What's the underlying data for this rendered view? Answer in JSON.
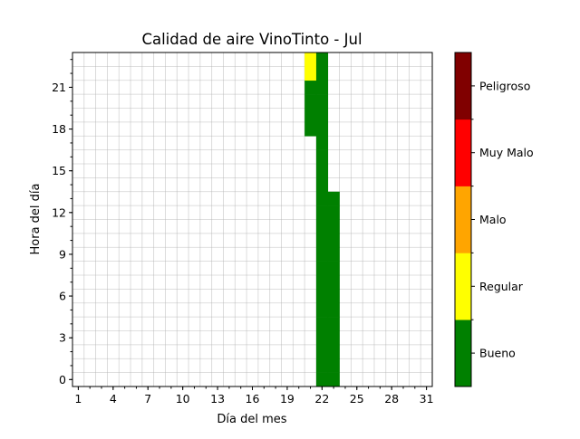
{
  "chart_data": {
    "type": "heatmap",
    "title": "Calidad de aire VinoTinto - Jul",
    "xlabel": "Día del mes",
    "ylabel": "Hora del día",
    "xlim": [
      0.5,
      31.5
    ],
    "ylim": [
      -0.5,
      23.5
    ],
    "x_ticks": [
      "1",
      "4",
      "7",
      "10",
      "13",
      "16",
      "19",
      "22",
      "25",
      "28",
      "31"
    ],
    "y_ticks": [
      "0",
      "3",
      "6",
      "9",
      "12",
      "15",
      "18",
      "21"
    ],
    "grid": true,
    "cells": [
      {
        "day": 21,
        "hour": 18,
        "category": "Bueno"
      },
      {
        "day": 21,
        "hour": 19,
        "category": "Bueno"
      },
      {
        "day": 21,
        "hour": 20,
        "category": "Bueno"
      },
      {
        "day": 21,
        "hour": 21,
        "category": "Bueno"
      },
      {
        "day": 21,
        "hour": 22,
        "category": "Regular"
      },
      {
        "day": 21,
        "hour": 23,
        "category": "Regular"
      },
      {
        "day": 22,
        "hour": 0,
        "category": "Bueno"
      },
      {
        "day": 22,
        "hour": 1,
        "category": "Bueno"
      },
      {
        "day": 22,
        "hour": 2,
        "category": "Bueno"
      },
      {
        "day": 22,
        "hour": 3,
        "category": "Bueno"
      },
      {
        "day": 22,
        "hour": 4,
        "category": "Bueno"
      },
      {
        "day": 22,
        "hour": 5,
        "category": "Bueno"
      },
      {
        "day": 22,
        "hour": 6,
        "category": "Bueno"
      },
      {
        "day": 22,
        "hour": 7,
        "category": "Bueno"
      },
      {
        "day": 22,
        "hour": 8,
        "category": "Bueno"
      },
      {
        "day": 22,
        "hour": 9,
        "category": "Bueno"
      },
      {
        "day": 22,
        "hour": 10,
        "category": "Bueno"
      },
      {
        "day": 22,
        "hour": 11,
        "category": "Bueno"
      },
      {
        "day": 22,
        "hour": 12,
        "category": "Bueno"
      },
      {
        "day": 22,
        "hour": 13,
        "category": "Bueno"
      },
      {
        "day": 22,
        "hour": 14,
        "category": "Bueno"
      },
      {
        "day": 22,
        "hour": 15,
        "category": "Bueno"
      },
      {
        "day": 22,
        "hour": 16,
        "category": "Bueno"
      },
      {
        "day": 22,
        "hour": 17,
        "category": "Bueno"
      },
      {
        "day": 22,
        "hour": 18,
        "category": "Bueno"
      },
      {
        "day": 22,
        "hour": 19,
        "category": "Bueno"
      },
      {
        "day": 22,
        "hour": 20,
        "category": "Bueno"
      },
      {
        "day": 22,
        "hour": 21,
        "category": "Bueno"
      },
      {
        "day": 22,
        "hour": 22,
        "category": "Bueno"
      },
      {
        "day": 22,
        "hour": 23,
        "category": "Bueno"
      },
      {
        "day": 23,
        "hour": 0,
        "category": "Bueno"
      },
      {
        "day": 23,
        "hour": 1,
        "category": "Bueno"
      },
      {
        "day": 23,
        "hour": 2,
        "category": "Bueno"
      },
      {
        "day": 23,
        "hour": 3,
        "category": "Bueno"
      },
      {
        "day": 23,
        "hour": 4,
        "category": "Bueno"
      },
      {
        "day": 23,
        "hour": 5,
        "category": "Bueno"
      },
      {
        "day": 23,
        "hour": 6,
        "category": "Bueno"
      },
      {
        "day": 23,
        "hour": 7,
        "category": "Bueno"
      },
      {
        "day": 23,
        "hour": 8,
        "category": "Bueno"
      },
      {
        "day": 23,
        "hour": 9,
        "category": "Bueno"
      },
      {
        "day": 23,
        "hour": 10,
        "category": "Bueno"
      },
      {
        "day": 23,
        "hour": 11,
        "category": "Bueno"
      },
      {
        "day": 23,
        "hour": 12,
        "category": "Bueno"
      },
      {
        "day": 23,
        "hour": 13,
        "category": "Bueno"
      }
    ],
    "colorbar": [
      {
        "label": "Bueno",
        "color": "#008000"
      },
      {
        "label": "Regular",
        "color": "#ffff00"
      },
      {
        "label": "Malo",
        "color": "#ffa500"
      },
      {
        "label": "Muy Malo",
        "color": "#ff0000"
      },
      {
        "label": "Peligroso",
        "color": "#800000"
      }
    ]
  }
}
